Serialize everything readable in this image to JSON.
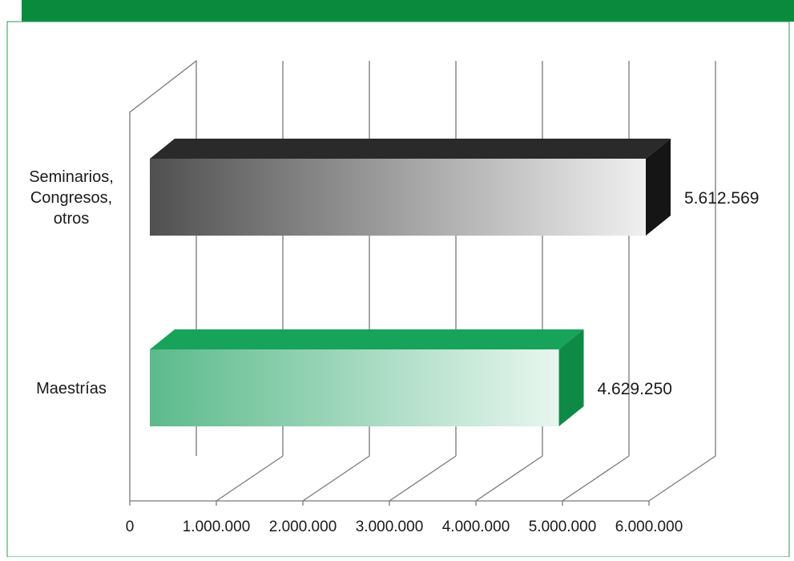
{
  "chart_data": {
    "type": "bar",
    "orientation": "horizontal",
    "style": "3d",
    "categories": [
      "Seminarios,\nCongresos,\notros",
      "Maestrías"
    ],
    "values": [
      5612569,
      4629250
    ],
    "value_labels": [
      "5.612.569",
      "4.629.250"
    ],
    "xlim": [
      0,
      6000000
    ],
    "x_ticks": [
      0,
      1000000,
      2000000,
      3000000,
      4000000,
      5000000,
      6000000
    ],
    "x_tick_labels": [
      "0",
      "1.000.000",
      "2.000.000",
      "3.000.000",
      "4.000.000",
      "5.000.000",
      "6.000.000"
    ],
    "grid": true,
    "legend": "none",
    "colors": {
      "header": "#0a8a3c",
      "frame": "#2e9a5a",
      "grid": "#7a7a7a",
      "bar_dark_start": "#505050",
      "bar_dark_end": "#f0f0f0",
      "bar_dark_top": "#2a2a2a",
      "bar_dark_side": "#151515",
      "bar_green_start": "#5cba8c",
      "bar_green_end": "#e8f6ef",
      "bar_green_top": "#17a35a",
      "bar_green_side": "#0e8a47"
    }
  }
}
